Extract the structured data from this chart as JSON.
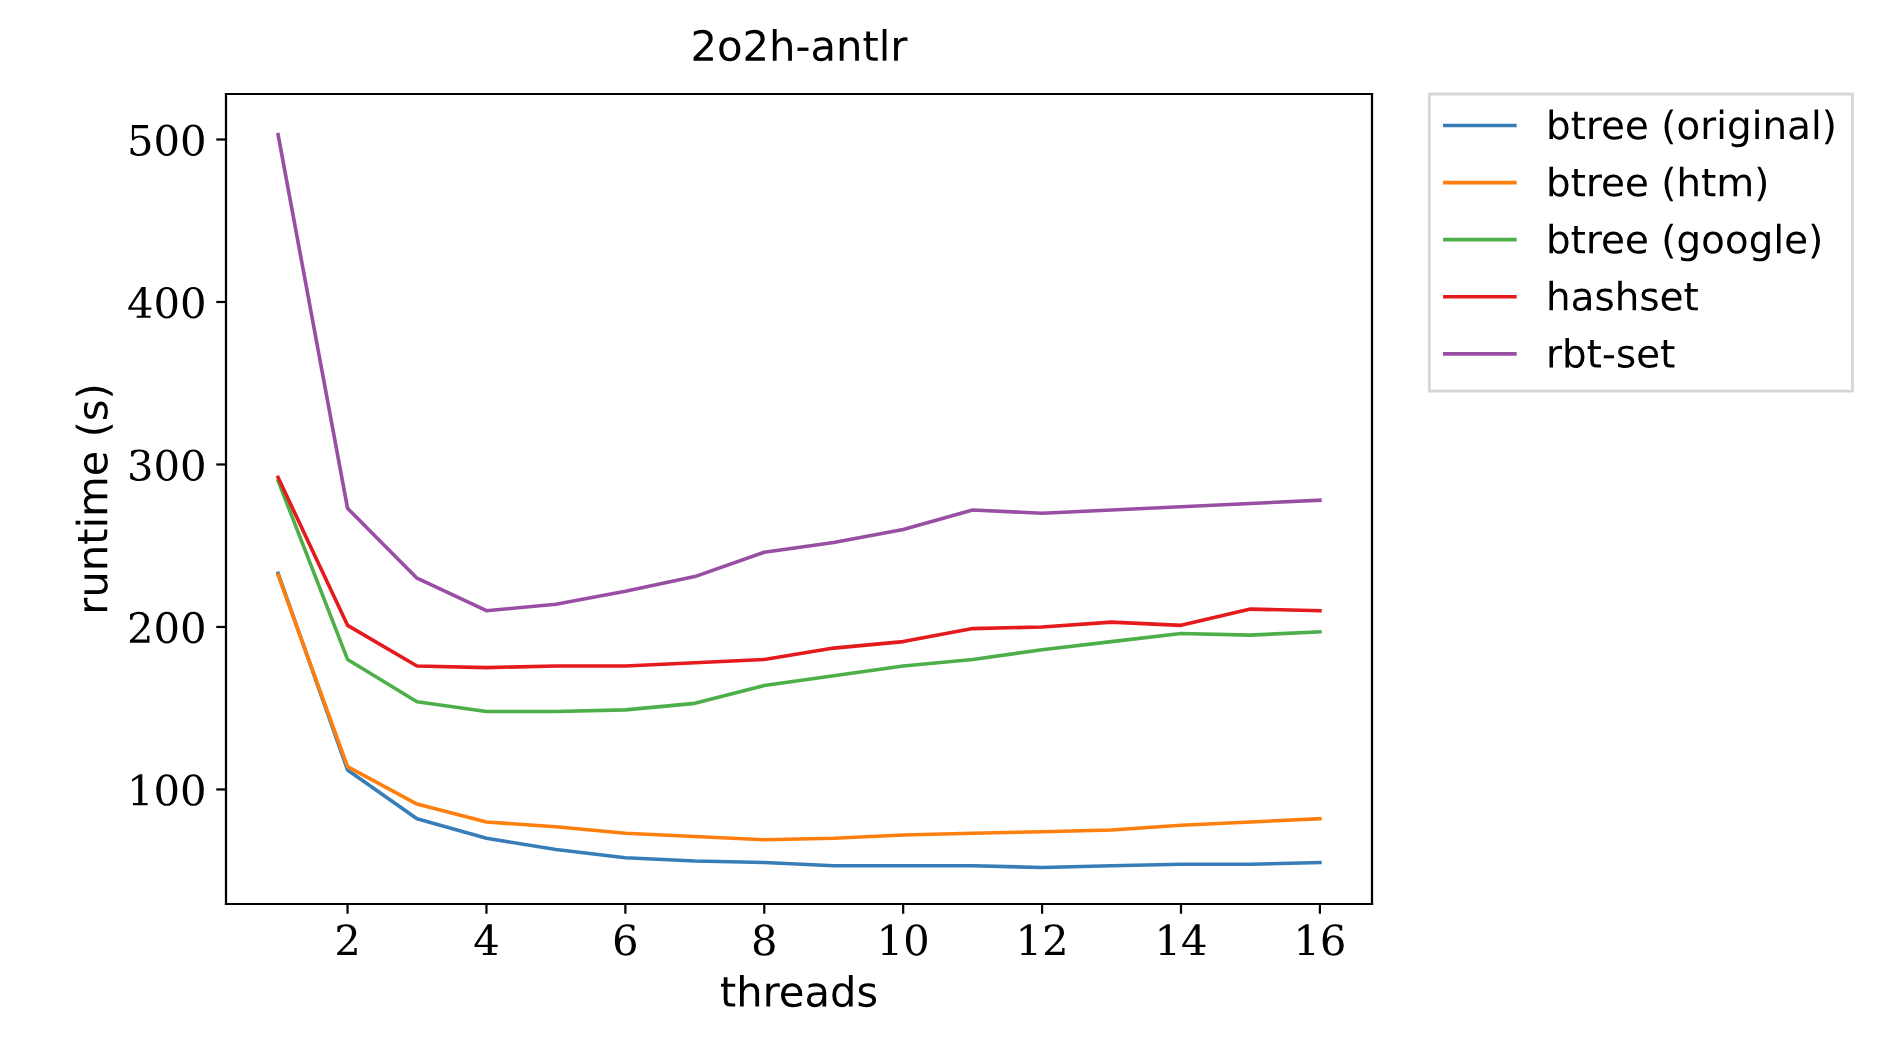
{
  "chart_data": {
    "type": "line",
    "title": "2o2h-antlr",
    "xlabel": "threads",
    "ylabel": "runtime (s)",
    "x": [
      1,
      2,
      3,
      4,
      5,
      6,
      7,
      8,
      9,
      10,
      11,
      12,
      13,
      14,
      15,
      16
    ],
    "series": [
      {
        "name": "btree (original)",
        "color": "#377eb8",
        "values": [
          233,
          112,
          82,
          70,
          63,
          58,
          56,
          55,
          53,
          53,
          53,
          52,
          53,
          54,
          54,
          55
        ]
      },
      {
        "name": "btree (htm)",
        "color": "#ff7f0e",
        "values": [
          232,
          114,
          91,
          80,
          77,
          73,
          71,
          69,
          70,
          72,
          73,
          74,
          75,
          78,
          80,
          82
        ]
      },
      {
        "name": "btree (google)",
        "color": "#4daf4a",
        "values": [
          290,
          180,
          154,
          148,
          148,
          149,
          153,
          164,
          170,
          176,
          180,
          186,
          191,
          196,
          195,
          197
        ]
      },
      {
        "name": "hashset",
        "color": "#e41a1c",
        "values": [
          292,
          201,
          176,
          175,
          176,
          176,
          178,
          180,
          187,
          191,
          199,
          200,
          203,
          201,
          211,
          210
        ]
      },
      {
        "name": "rbt-set",
        "color": "#984ea3",
        "values": [
          503,
          273,
          230,
          210,
          214,
          222,
          231,
          246,
          252,
          260,
          272,
          270,
          272,
          274,
          276,
          278
        ]
      }
    ],
    "xlim": [
      0.25,
      16.75
    ],
    "ylim": [
      29.5,
      528
    ],
    "xticks": [
      2,
      4,
      6,
      8,
      10,
      12,
      14,
      16
    ],
    "yticks": [
      100,
      200,
      300,
      400,
      500
    ],
    "grid": false,
    "legend": "top right",
    "marker": "none",
    "line_style": "solid"
  }
}
